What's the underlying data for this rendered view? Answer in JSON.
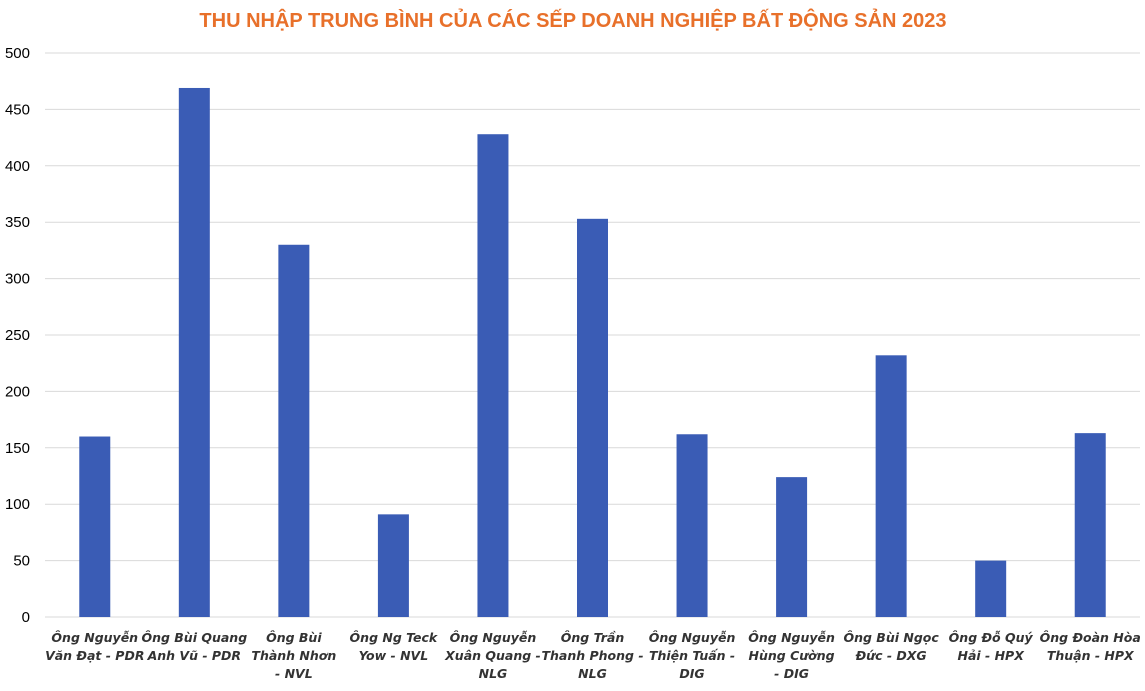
{
  "chart_data": {
    "type": "bar",
    "title": "THU NHẬP TRUNG BÌNH CỦA CÁC SẾP DOANH NGHIỆP BẤT ĐỘNG SẢN 2023",
    "xlabel": "",
    "ylabel": "",
    "ylim": [
      0,
      500
    ],
    "yticks": [
      0,
      50,
      100,
      150,
      200,
      250,
      300,
      350,
      400,
      450,
      500
    ],
    "grid": true,
    "legend": "none",
    "bar_color": "#3a5cb5",
    "title_color": "#e8702a",
    "categories": [
      [
        "Ông Nguyễn",
        "Văn Đạt - PDR"
      ],
      [
        "Ông Bùi Quang",
        "Anh Vũ - PDR"
      ],
      [
        "Ông Bùi",
        "Thành Nhơn",
        "- NVL"
      ],
      [
        "Ông Ng Teck",
        "Yow - NVL"
      ],
      [
        "Ông Nguyễn",
        "Xuân Quang -",
        "NLG"
      ],
      [
        "Ông Trần",
        "Thanh Phong -",
        "NLG"
      ],
      [
        "Ông Nguyễn",
        "Thiện Tuấn -",
        "DIG"
      ],
      [
        "Ông Nguyễn",
        "Hùng Cường",
        "- DIG"
      ],
      [
        "Ông Bùi Ngọc",
        "Đức - DXG"
      ],
      [
        "Ông Đỗ Quý",
        "Hải - HPX"
      ],
      [
        "Ông Đoàn Hòa",
        "Thuận - HPX"
      ]
    ],
    "values": [
      160,
      469,
      330,
      91,
      428,
      353,
      162,
      124,
      232,
      50,
      163
    ]
  }
}
